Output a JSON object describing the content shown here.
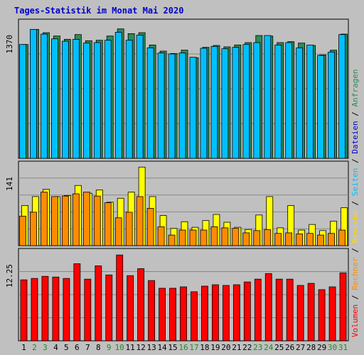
{
  "chart_data": {
    "type": "bar",
    "title": "Tages-Statistik im Monat Mai 2020",
    "categories": [
      "1",
      "2",
      "3",
      "4",
      "5",
      "6",
      "7",
      "8",
      "9",
      "10",
      "11",
      "12",
      "13",
      "14",
      "15",
      "16",
      "17",
      "18",
      "19",
      "20",
      "21",
      "22",
      "23",
      "24",
      "25",
      "26",
      "27",
      "28",
      "29",
      "30",
      "31"
    ],
    "weekend_days": [
      "2",
      "3",
      "9",
      "10",
      "16",
      "17",
      "23",
      "24",
      "30",
      "31"
    ],
    "panels": [
      {
        "name": "top",
        "ytick_label": "1370",
        "ymax": 1370,
        "series": [
          {
            "name": "Anfragen",
            "color": "#2e8b57",
            "values": [
              1205,
              1365,
              1330,
              1295,
              1260,
              1310,
              1245,
              1250,
              1295,
              1370,
              1320,
              1330,
              1200,
              1135,
              1110,
              1145,
              1065,
              1175,
              1195,
              1180,
              1200,
              1225,
              1300,
              1295,
              1225,
              1235,
              1220,
              1195,
              1095,
              1145,
              1315
            ]
          },
          {
            "name": "Seiten",
            "color": "#00bfff",
            "values": [
              1205,
              1365,
              1315,
              1265,
              1240,
              1260,
              1220,
              1225,
              1250,
              1335,
              1250,
              1305,
              1170,
              1115,
              1105,
              1115,
              1070,
              1165,
              1185,
              1160,
              1175,
              1205,
              1225,
              1300,
              1200,
              1225,
              1170,
              1200,
              1090,
              1125,
              1310
            ]
          }
        ]
      },
      {
        "name": "middle",
        "ytick_label": "141",
        "ymax": 141,
        "series": [
          {
            "name": "Dateien",
            "color": "#ffff00",
            "values": [
              72,
              88,
              101,
              88,
              90,
              108,
              94,
              100,
              78,
              85,
              96,
              141,
              88,
              54,
              31,
              43,
              33,
              45,
              56,
              42,
              33,
              29,
              55,
              88,
              32,
              72,
              28,
              38,
              27,
              44,
              68
            ]
          },
          {
            "name": "Besuche",
            "color": "#ff8c00",
            "values": [
              53,
              60,
              96,
              88,
              89,
              93,
              96,
              89,
              77,
              50,
              60,
              88,
              67,
              34,
              19,
              28,
              28,
              28,
              34,
              32,
              31,
              23,
              27,
              29,
              22,
              23,
              21,
              22,
              19,
              22,
              28
            ]
          }
        ]
      },
      {
        "name": "bottom",
        "ytick_label": "12.25",
        "ymax": 12.25,
        "series": [
          {
            "name": "Volumen",
            "color": "#ff0000",
            "values": [
              8.7,
              8.9,
              9.2,
              9.1,
              8.9,
              11.0,
              8.8,
              10.7,
              9.4,
              12.25,
              9.3,
              10.3,
              8.6,
              7.5,
              7.5,
              7.7,
              7.0,
              7.8,
              8.0,
              7.9,
              8.0,
              8.4,
              8.8,
              9.6,
              8.8,
              8.8,
              7.9,
              8.2,
              7.3,
              7.7,
              9.7
            ]
          }
        ]
      }
    ],
    "legend_right": [
      {
        "label": "Volumen",
        "color": "#ff0000"
      },
      {
        "label": "Rechner",
        "color": "#ff8c00"
      },
      {
        "label": "Besuche",
        "color": "#ffd700"
      },
      {
        "label": "Seiten",
        "color": "#00bfff"
      },
      {
        "label": "Dateien",
        "color": "#0000cd"
      },
      {
        "label": "Anfragen",
        "color": "#2e8b57"
      }
    ],
    "legend_separator": "/",
    "grid": true
  }
}
